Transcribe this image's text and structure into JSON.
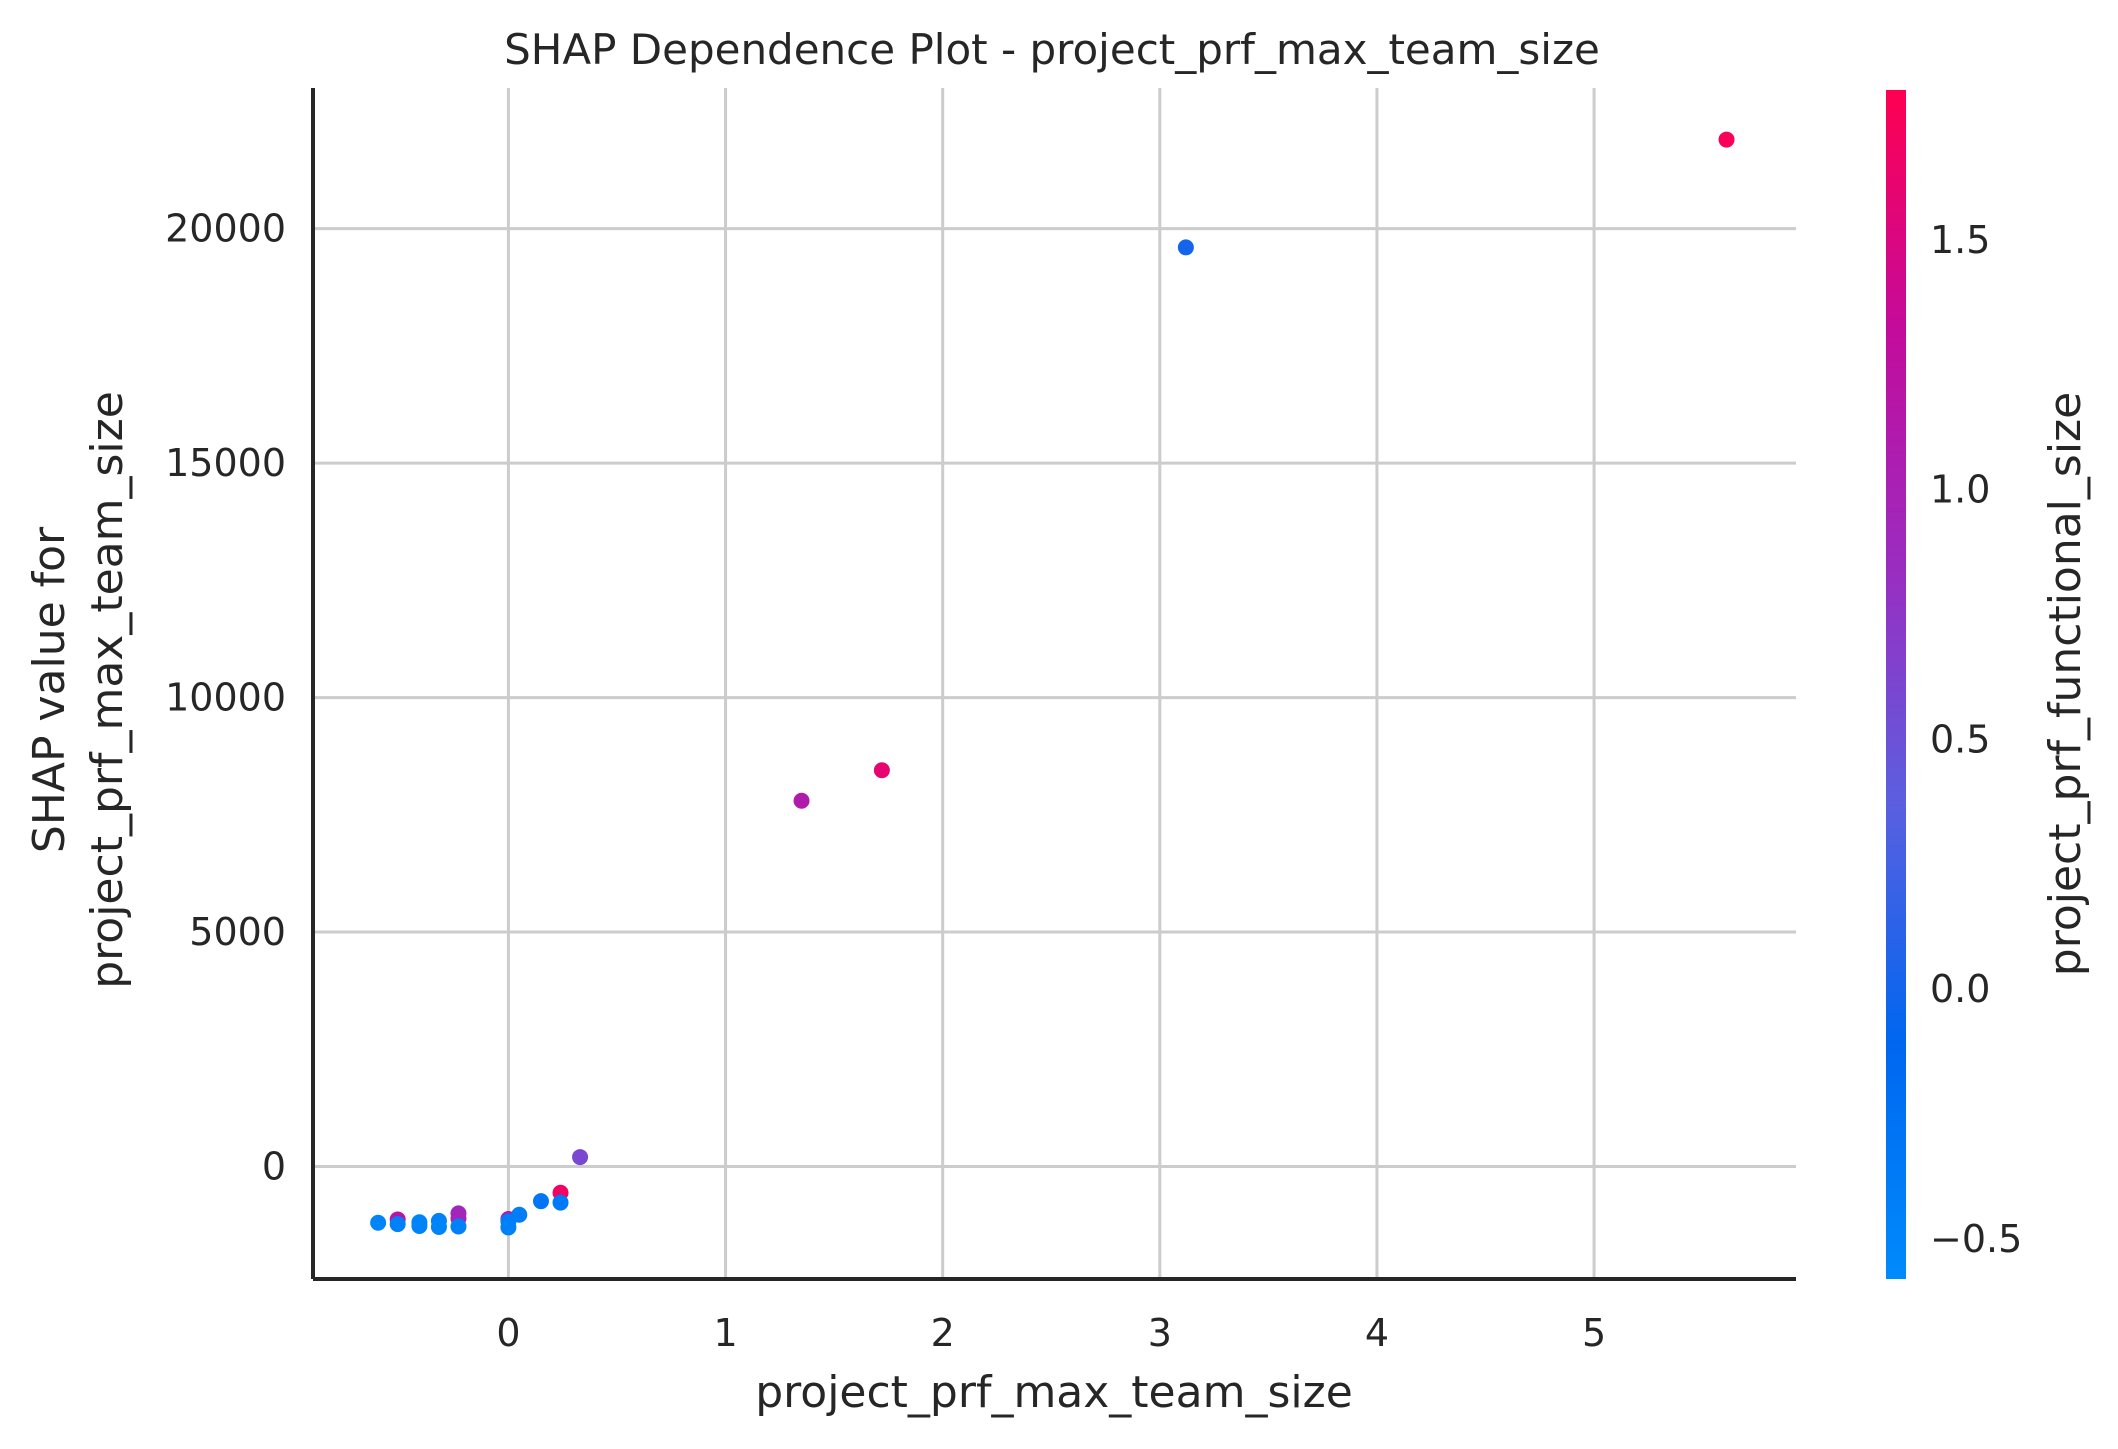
{
  "chart_data": {
    "type": "scatter",
    "title": "SHAP Dependence Plot - project_prf_max_team_size",
    "xlabel": "project_prf_max_team_size",
    "ylabel_lines": [
      "SHAP value for",
      "project_prf_max_team_size"
    ],
    "xlim": [
      -0.9,
      5.93
    ],
    "ylim": [
      -2400,
      23000
    ],
    "xticks": [
      0,
      1,
      2,
      3,
      4,
      5
    ],
    "yticks": [
      0,
      5000,
      10000,
      15000,
      20000
    ],
    "grid": true,
    "colorbar": {
      "label": "project_prf_functional_size",
      "range": [
        -0.58,
        1.8
      ],
      "ticks": [
        -0.5,
        0.0,
        0.5,
        1.0,
        1.5
      ],
      "tick_labels": [
        "−0.5",
        "0.0",
        "0.5",
        "1.0",
        "1.5"
      ],
      "colors": [
        "#008bfb",
        "#0066f0",
        "#5b5fe0",
        "#9b2cc0",
        "#c40b9b",
        "#ff0051"
      ]
    },
    "points": [
      {
        "x": -0.6,
        "y": -1200,
        "c": -0.5
      },
      {
        "x": -0.51,
        "y": -1130,
        "c": 1.2
      },
      {
        "x": -0.51,
        "y": -1230,
        "c": -0.45
      },
      {
        "x": -0.41,
        "y": -1190,
        "c": -0.5
      },
      {
        "x": -0.41,
        "y": -1270,
        "c": -0.48
      },
      {
        "x": -0.32,
        "y": -1160,
        "c": -0.45
      },
      {
        "x": -0.32,
        "y": -1290,
        "c": -0.5
      },
      {
        "x": -0.23,
        "y": -1000,
        "c": 0.9
      },
      {
        "x": -0.23,
        "y": -1110,
        "c": 0.95
      },
      {
        "x": -0.23,
        "y": -1280,
        "c": -0.45
      },
      {
        "x": 0.0,
        "y": -1120,
        "c": 1.1
      },
      {
        "x": 0.0,
        "y": -1170,
        "c": -0.4
      },
      {
        "x": 0.0,
        "y": -1300,
        "c": -0.45
      },
      {
        "x": 0.05,
        "y": -1030,
        "c": -0.4
      },
      {
        "x": 0.15,
        "y": -740,
        "c": -0.3
      },
      {
        "x": 0.24,
        "y": -560,
        "c": 1.7
      },
      {
        "x": 0.24,
        "y": -770,
        "c": -0.35
      },
      {
        "x": 0.33,
        "y": 200,
        "c": 0.6
      },
      {
        "x": 1.35,
        "y": 7800,
        "c": 1.1
      },
      {
        "x": 1.72,
        "y": 8450,
        "c": 1.6
      },
      {
        "x": 3.12,
        "y": 19600,
        "c": 0.0
      },
      {
        "x": 5.61,
        "y": 21900,
        "c": 1.75
      }
    ]
  }
}
